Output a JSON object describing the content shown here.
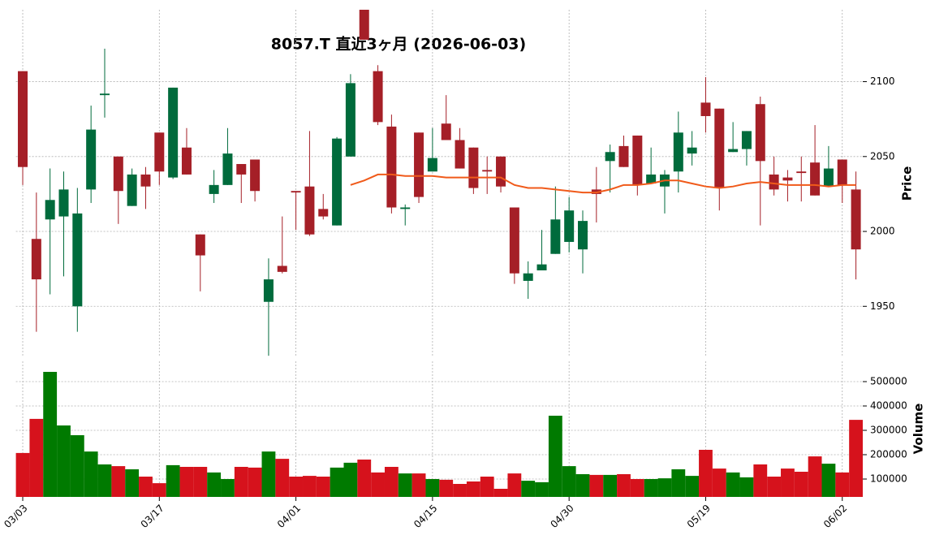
{
  "chart_data": {
    "type": "candlestick",
    "title": "8057.T  直近3ヶ月  (2026-06-03)",
    "categories": [
      "03/03",
      null,
      null,
      null,
      null,
      null,
      null,
      null,
      null,
      null,
      "03/17",
      null,
      null,
      null,
      null,
      null,
      null,
      null,
      null,
      null,
      "04/01",
      null,
      null,
      null,
      null,
      null,
      null,
      null,
      null,
      null,
      "04/15",
      null,
      null,
      null,
      null,
      null,
      null,
      null,
      null,
      null,
      "04/30",
      null,
      null,
      null,
      null,
      null,
      null,
      null,
      null,
      null,
      "05/19",
      null,
      null,
      null,
      null,
      null,
      null,
      null,
      null,
      null,
      "06/02",
      null
    ],
    "open": [
      2107,
      1995,
      2008,
      2010,
      1950,
      2028,
      2091,
      2050,
      2017,
      2038,
      2066,
      2036,
      2056,
      1998,
      2025,
      2031,
      2045,
      2048,
      1953,
      1977,
      2027,
      2030,
      2015,
      2004,
      2050,
      2150,
      2107,
      2070,
      2015,
      2066,
      2040,
      2072,
      2061,
      2056,
      2041,
      2050,
      2016,
      1967,
      1974,
      1985,
      1993,
      1988,
      2028,
      2047,
      2057,
      2064,
      2032,
      2030,
      2040,
      2052,
      2086,
      2082,
      2053,
      2055,
      2085,
      2038,
      2036,
      2040,
      2046,
      2030,
      2048,
      2028
    ],
    "high": [
      2107,
      2026,
      2042,
      2040,
      2029,
      2084,
      2122,
      2050,
      2042,
      2043,
      2066,
      2096,
      2069,
      1998,
      2041,
      2069,
      2045,
      2048,
      1982,
      2010,
      2027,
      2067,
      2025,
      2063,
      2105,
      2155,
      2111,
      2078,
      2018,
      2066,
      2069,
      2091,
      2069,
      2056,
      2050,
      2050,
      2016,
      1980,
      2001,
      2030,
      2023,
      2014,
      2043,
      2058,
      2064,
      2064,
      2056,
      2041,
      2080,
      2067,
      2103,
      2082,
      2073,
      2067,
      2090,
      2050,
      2041,
      2050,
      2071,
      2057,
      2048,
      2040
    ],
    "low": [
      2031,
      1933,
      1958,
      1970,
      1933,
      2019,
      2076,
      2005,
      2017,
      2015,
      2031,
      2035,
      2038,
      1960,
      2019,
      2031,
      2019,
      2020,
      1917,
      1972,
      2001,
      1997,
      2008,
      2004,
      2050,
      2128,
      2071,
      2012,
      2004,
      2019,
      2040,
      2061,
      2042,
      2025,
      2025,
      2026,
      1965,
      1955,
      1974,
      1985,
      1986,
      1972,
      2006,
      2026,
      2043,
      2024,
      2032,
      2012,
      2026,
      2044,
      2066,
      2014,
      2053,
      2044,
      2004,
      2024,
      2020,
      2020,
      2024,
      2030,
      2019,
      1968
    ],
    "close": [
      2043,
      1968,
      2021,
      2028,
      2012,
      2068,
      2092,
      2027,
      2038,
      2030,
      2040,
      2096,
      2038,
      1984,
      2031,
      2052,
      2038,
      2027,
      1968,
      1973,
      2026,
      1998,
      2010,
      2062,
      2099,
      2128,
      2073,
      2016,
      2016,
      2023,
      2049,
      2061,
      2042,
      2029,
      2040,
      2030,
      1972,
      1972,
      1978,
      2008,
      2014,
      2007,
      2025,
      2053,
      2043,
      2031,
      2038,
      2038,
      2066,
      2056,
      2077,
      2029,
      2055,
      2067,
      2047,
      2028,
      2034,
      2039,
      2024,
      2042,
      2031,
      1988
    ],
    "up_color": "#006b3c",
    "down_color": "#a51f27",
    "ylim": [
      1916,
      2148
    ],
    "yticks": [
      1950,
      2000,
      2050,
      2100
    ],
    "y_label": "Price",
    "grid": true,
    "moving_average": {
      "color": "#f05a1a",
      "values": [
        null,
        null,
        null,
        null,
        null,
        null,
        null,
        null,
        null,
        null,
        null,
        null,
        null,
        null,
        null,
        null,
        null,
        null,
        null,
        null,
        null,
        null,
        null,
        null,
        2031,
        2034,
        2038,
        2038,
        2037,
        2037,
        2037,
        2036,
        2036,
        2036,
        2036,
        2036,
        2031,
        2029,
        2029,
        2028,
        2027,
        2026,
        2026,
        2028,
        2031,
        2031,
        2032,
        2034,
        2034,
        2032,
        2030,
        2029,
        2030,
        2032,
        2033,
        2032,
        2031,
        2031,
        2031,
        2030,
        2031,
        2031
      ]
    },
    "volume": {
      "values": [
        207000,
        347000,
        540000,
        320000,
        280000,
        213000,
        160000,
        153000,
        140000,
        110000,
        83000,
        157000,
        150000,
        150000,
        127000,
        100000,
        150000,
        147000,
        213000,
        183000,
        110000,
        113000,
        110000,
        147000,
        167000,
        180000,
        127000,
        150000,
        123000,
        123000,
        100000,
        97000,
        80000,
        90000,
        110000,
        60000,
        123000,
        93000,
        87000,
        360000,
        153000,
        120000,
        117000,
        117000,
        120000,
        100000,
        100000,
        103000,
        140000,
        113000,
        220000,
        143000,
        127000,
        107000,
        160000,
        110000,
        143000,
        130000,
        193000,
        163000,
        127000,
        343000
      ],
      "up_color": "#007a00",
      "down_color": "#d6121c",
      "y2lim": [
        26667,
        583333
      ],
      "y2ticks": [
        100000,
        200000,
        300000,
        400000,
        500000
      ],
      "y_label": "Volume"
    }
  }
}
